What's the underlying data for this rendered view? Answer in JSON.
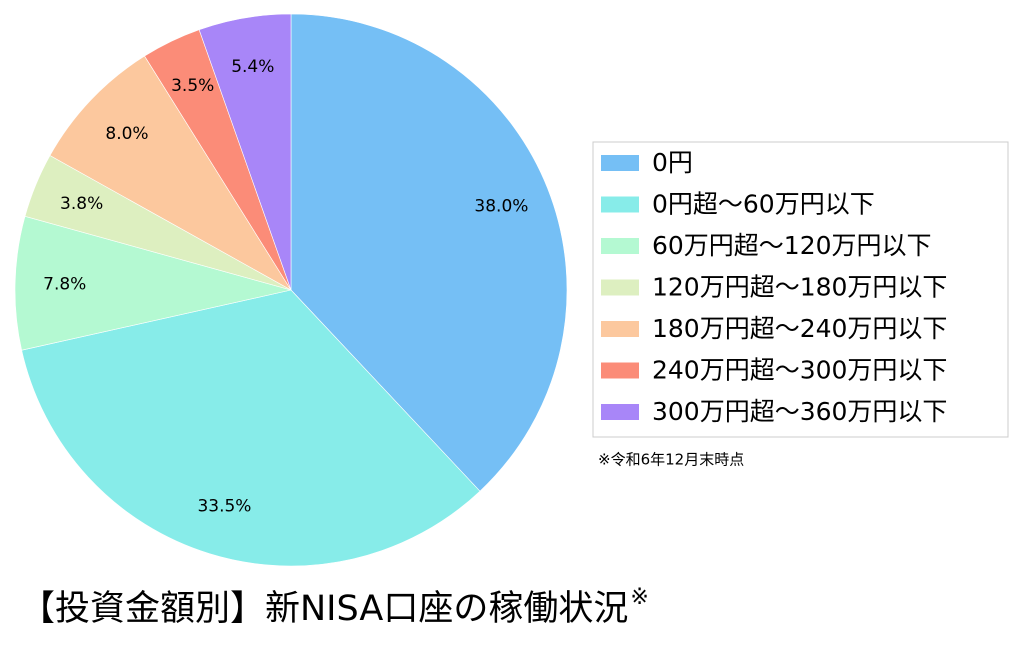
{
  "chart_data": {
    "type": "pie",
    "title": "【投資金額別】新NISA口座の稼働状況",
    "title_mark": "※",
    "note": "※令和6年12月末時点",
    "categories": [
      "0円",
      "0円超〜60万円以下",
      "60万円超〜120万円以下",
      "120万円超〜180万円以下",
      "180万円超〜240万円以下",
      "240万円超〜300万円以下",
      "300万円超〜360万円以下"
    ],
    "values": [
      38.0,
      33.5,
      7.8,
      3.8,
      8.0,
      3.5,
      5.4
    ],
    "value_labels": [
      "38.0%",
      "33.5%",
      "7.8%",
      "3.8%",
      "8.0%",
      "3.5%",
      "5.4%"
    ],
    "colors": [
      "#75bff5",
      "#87ece9",
      "#b4f9d2",
      "#ddefc0",
      "#fcc89e",
      "#fb8c78",
      "#a886f8"
    ],
    "legend": "right"
  }
}
